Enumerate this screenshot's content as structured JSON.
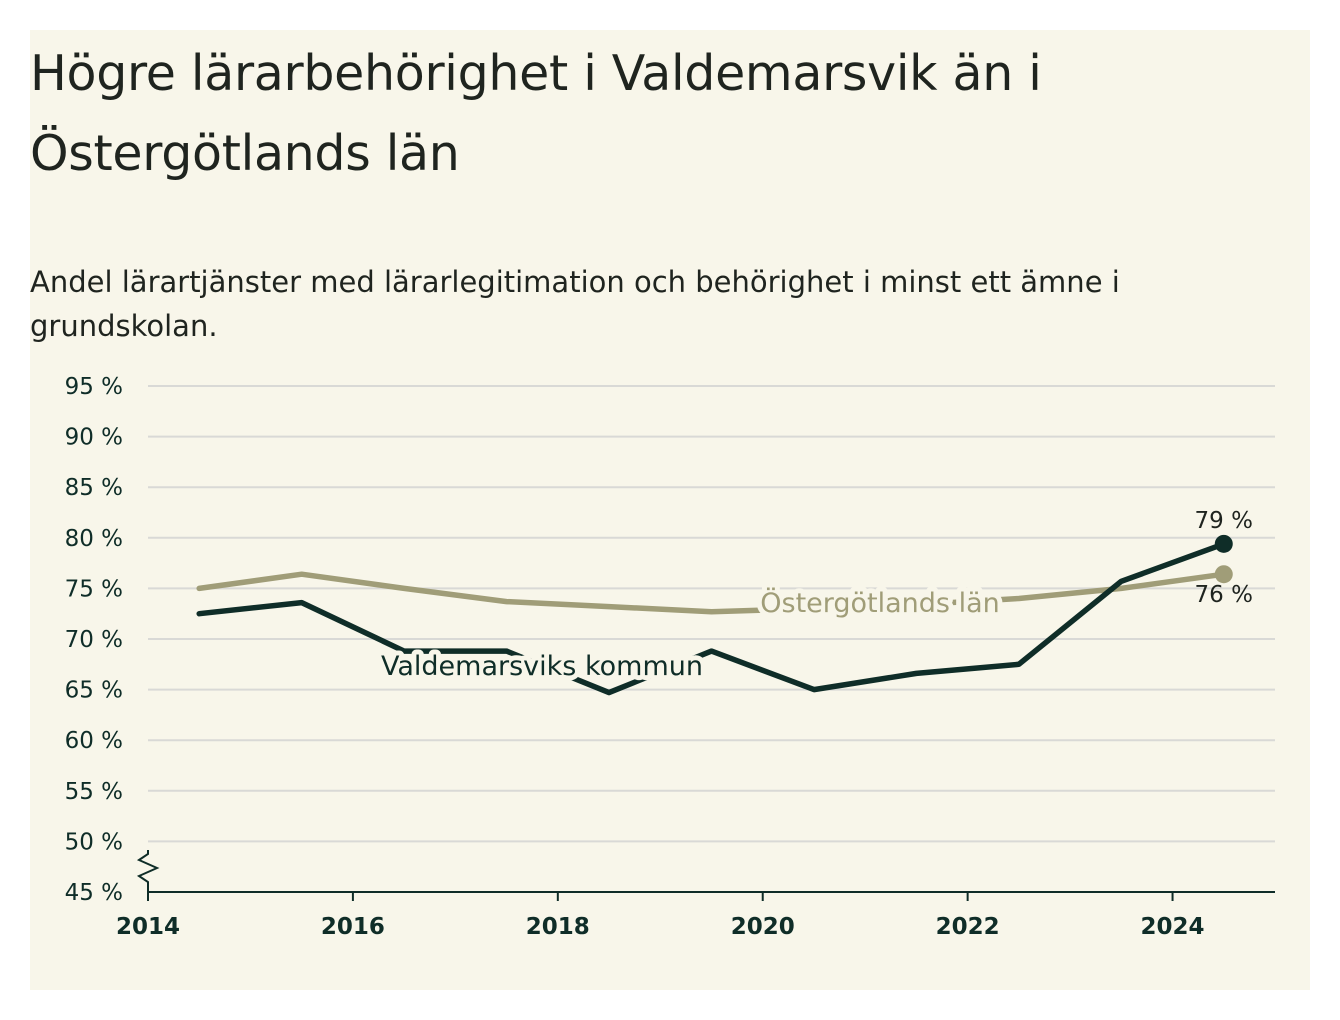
{
  "title": "Högre lärarbehörighet i Valdemarsvik än i Östergötlands län",
  "subtitle": "Andel lärartjänster med lärarlegitimation och behörighet i minst ett ämne i grundskolan.",
  "colors": {
    "background": "#f8f6ea",
    "kommun": "#0f2d28",
    "lan": "#a09d78",
    "grid": "#d9d9d6"
  },
  "chart_data": {
    "type": "line",
    "y_axis_break": true,
    "grid": true,
    "ylim": [
      45,
      95
    ],
    "y_ticks": [
      {
        "value": 45,
        "label": "45 %"
      },
      {
        "value": 50,
        "label": "50 %"
      },
      {
        "value": 55,
        "label": "55 %"
      },
      {
        "value": 60,
        "label": "60 %"
      },
      {
        "value": 65,
        "label": "65 %"
      },
      {
        "value": 70,
        "label": "70 %"
      },
      {
        "value": 75,
        "label": "75 %"
      },
      {
        "value": 80,
        "label": "80 %"
      },
      {
        "value": 85,
        "label": "85 %"
      },
      {
        "value": 90,
        "label": "90 %"
      },
      {
        "value": 95,
        "label": "95 %"
      }
    ],
    "xlim": [
      2014,
      2025
    ],
    "x_ticks": [
      {
        "value": 2014,
        "label": "2014"
      },
      {
        "value": 2016,
        "label": "2016"
      },
      {
        "value": 2018,
        "label": "2018"
      },
      {
        "value": 2020,
        "label": "2020"
      },
      {
        "value": 2022,
        "label": "2022"
      },
      {
        "value": 2024,
        "label": "2024"
      }
    ],
    "x": [
      2014.5,
      2015.5,
      2016.5,
      2017.5,
      2018.5,
      2019.5,
      2020.5,
      2021.5,
      2022.5,
      2023.5,
      2024.5
    ],
    "series": [
      {
        "name": "Östergötlands län",
        "color": "#a09d78",
        "values": [
          75.0,
          76.4,
          75.0,
          73.7,
          73.2,
          72.7,
          73.0,
          73.4,
          74.0,
          75.0,
          76.4
        ],
        "end_label": "76 %",
        "end_marker": true
      },
      {
        "name": "Valdemarsviks kommun",
        "color": "#0f2d28",
        "values": [
          72.5,
          73.6,
          68.8,
          68.8,
          64.7,
          68.8,
          65.0,
          66.6,
          67.5,
          75.7,
          79.4
        ],
        "end_label": "79 %",
        "end_marker": true
      }
    ]
  }
}
